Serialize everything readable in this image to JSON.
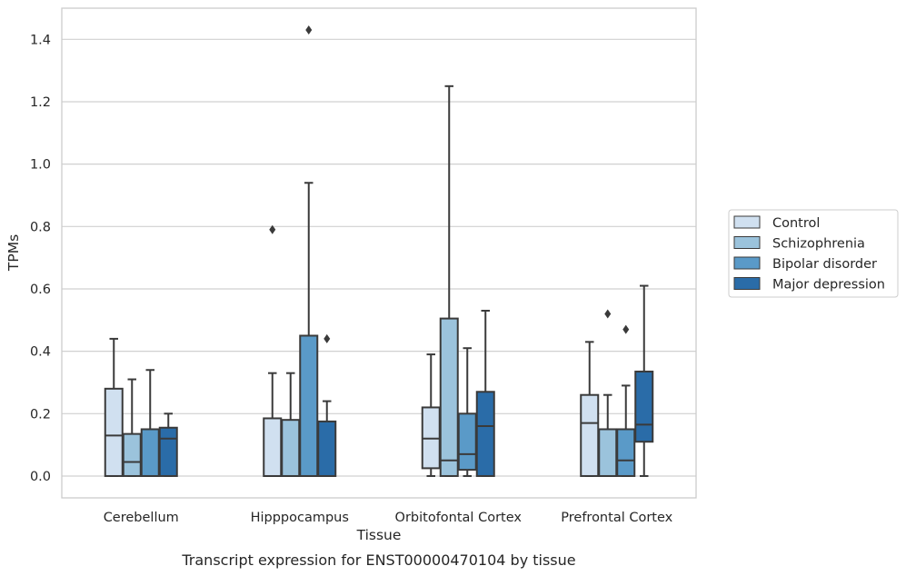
{
  "chart_data": {
    "type": "boxplot",
    "title": "",
    "caption": "Transcript expression for ENST00000470104 by tissue",
    "xlabel": "Tissue",
    "ylabel": "TPMs",
    "ylim": [
      -0.07,
      1.5
    ],
    "yticks": [
      0.0,
      0.2,
      0.4,
      0.6,
      0.8,
      1.0,
      1.2,
      1.4
    ],
    "ytick_labels": [
      "0.0",
      "0.2",
      "0.4",
      "0.6",
      "0.8",
      "1.0",
      "1.2",
      "1.4"
    ],
    "grid": "horizontal",
    "legend_position": "right",
    "categories": [
      "Cerebellum",
      "Hipppocampus",
      "Orbitofontal Cortex",
      "Prefrontal Cortex"
    ],
    "series": [
      {
        "name": "Control",
        "color": "#d0e0f0",
        "boxes": [
          {
            "whislo": 0.0,
            "q1": 0.0,
            "med": 0.13,
            "q3": 0.28,
            "whishi": 0.44,
            "fliers": []
          },
          {
            "whislo": 0.0,
            "q1": 0.0,
            "med": 0.0,
            "q3": 0.185,
            "whishi": 0.33,
            "fliers": [
              0.79
            ]
          },
          {
            "whislo": 0.0,
            "q1": 0.025,
            "med": 0.12,
            "q3": 0.22,
            "whishi": 0.39,
            "fliers": []
          },
          {
            "whislo": 0.0,
            "q1": 0.0,
            "med": 0.17,
            "q3": 0.26,
            "whishi": 0.43,
            "fliers": []
          }
        ]
      },
      {
        "name": "Schizophrenia",
        "color": "#9bc3dc",
        "boxes": [
          {
            "whislo": 0.0,
            "q1": 0.0,
            "med": 0.045,
            "q3": 0.135,
            "whishi": 0.31,
            "fliers": []
          },
          {
            "whislo": 0.0,
            "q1": 0.0,
            "med": 0.0,
            "q3": 0.18,
            "whishi": 0.33,
            "fliers": []
          },
          {
            "whislo": 0.0,
            "q1": 0.0,
            "med": 0.05,
            "q3": 0.505,
            "whishi": 1.25,
            "fliers": []
          },
          {
            "whislo": 0.0,
            "q1": 0.0,
            "med": 0.0,
            "q3": 0.15,
            "whishi": 0.26,
            "fliers": [
              0.52
            ]
          }
        ]
      },
      {
        "name": "Bipolar disorder",
        "color": "#5a9ac8",
        "boxes": [
          {
            "whislo": 0.0,
            "q1": 0.0,
            "med": 0.0,
            "q3": 0.15,
            "whishi": 0.34,
            "fliers": []
          },
          {
            "whislo": 0.0,
            "q1": 0.0,
            "med": 0.0,
            "q3": 0.45,
            "whishi": 0.94,
            "fliers": [
              1.43
            ]
          },
          {
            "whislo": 0.0,
            "q1": 0.02,
            "med": 0.07,
            "q3": 0.2,
            "whishi": 0.41,
            "fliers": []
          },
          {
            "whislo": 0.0,
            "q1": 0.0,
            "med": 0.05,
            "q3": 0.15,
            "whishi": 0.29,
            "fliers": [
              0.47
            ]
          }
        ]
      },
      {
        "name": "Major depression",
        "color": "#2a6ca8",
        "boxes": [
          {
            "whislo": 0.0,
            "q1": 0.0,
            "med": 0.12,
            "q3": 0.155,
            "whishi": 0.2,
            "fliers": []
          },
          {
            "whislo": 0.0,
            "q1": 0.0,
            "med": 0.0,
            "q3": 0.175,
            "whishi": 0.24,
            "fliers": [
              0.44
            ]
          },
          {
            "whislo": 0.0,
            "q1": 0.0,
            "med": 0.16,
            "q3": 0.27,
            "whishi": 0.53,
            "fliers": []
          },
          {
            "whislo": 0.0,
            "q1": 0.11,
            "med": 0.165,
            "q3": 0.335,
            "whishi": 0.61,
            "fliers": []
          }
        ]
      }
    ]
  }
}
